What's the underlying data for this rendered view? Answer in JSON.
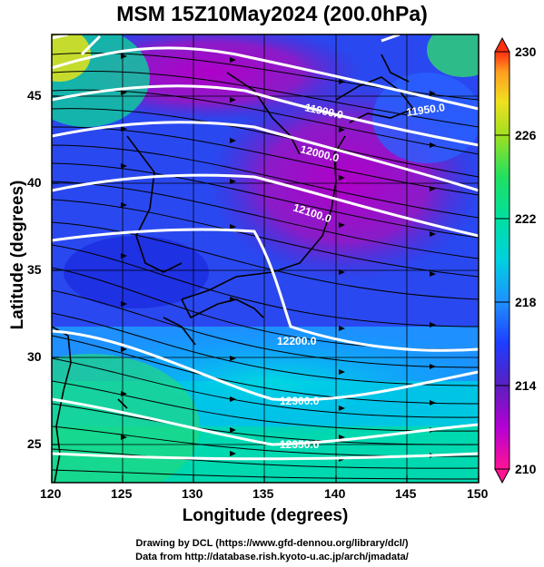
{
  "title": "MSM 15Z10May2024 (200.0hPa)",
  "axes": {
    "xlabel": "Longitude (degrees)",
    "ylabel": "Latitude  (degrees)",
    "x_ticks": [
      "120",
      "125",
      "130",
      "135",
      "140",
      "145",
      "150"
    ],
    "y_ticks": [
      "45",
      "40",
      "35",
      "30",
      "25"
    ],
    "xlim": [
      120,
      150
    ],
    "ylim": [
      22.4,
      47.6
    ]
  },
  "colorbar": {
    "ticks": [
      "230",
      "226",
      "222",
      "218",
      "214",
      "210"
    ],
    "min": 210,
    "max": 230,
    "colors": [
      "#ff1493",
      "#b400d4",
      "#5a1fbf",
      "#1e3cff",
      "#1e90ff",
      "#00d0e0",
      "#00e0a0",
      "#20e060",
      "#a0e020",
      "#f0e020",
      "#ffa020",
      "#ff3010"
    ]
  },
  "contour_labels": [
    "11900.0",
    "11950.0",
    "12000.0",
    "12100.0",
    "12200.0",
    "12300.0",
    "12350.0"
  ],
  "credits": {
    "line1": "Drawing by DCL (https://www.gfd-dennou.org/library/dcl/)",
    "line2": "Data from http://database.rish.kyoto-u.ac.jp/arch/jmadata/"
  }
}
